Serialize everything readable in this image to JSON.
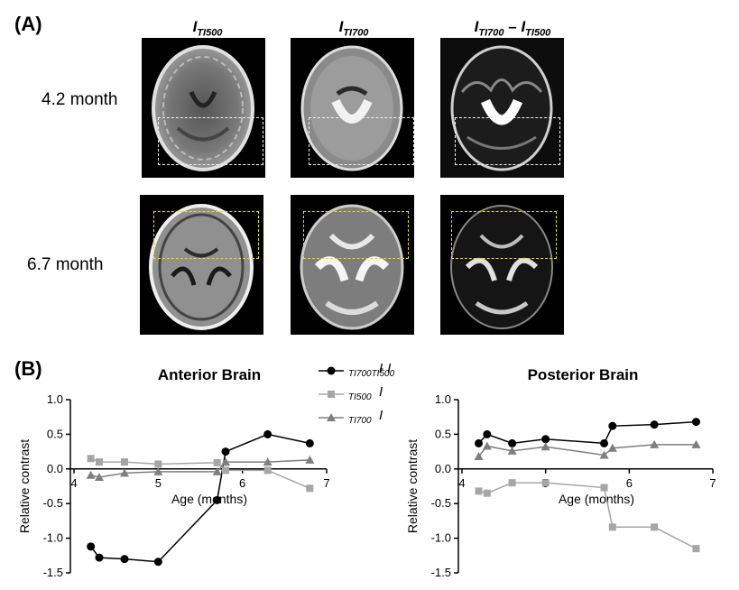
{
  "panels": {
    "a": "(A)",
    "b": "(B)"
  },
  "columns": [
    {
      "main": "I",
      "sub": "TI500",
      "rest": "",
      "sub2": ""
    },
    {
      "main": "I",
      "sub": "TI700",
      "rest": "",
      "sub2": ""
    },
    {
      "main": "I",
      "sub": "TI700",
      "rest": " – I",
      "sub2": "TI500"
    }
  ],
  "rows": [
    "4.2 month",
    "6.7 month"
  ],
  "legend": [
    {
      "main": "I",
      "sub": "TI700",
      "rest": " - I",
      "sub2": "TI500",
      "color": "#000000",
      "marker": "circle"
    },
    {
      "main": "I",
      "sub": "TI500",
      "rest": "",
      "sub2": "",
      "color": "#a6a6a6",
      "marker": "square"
    },
    {
      "main": "I",
      "sub": "TI700",
      "rest": "",
      "sub2": "",
      "color": "#7f7f7f",
      "marker": "triangle"
    }
  ],
  "chart_data": [
    {
      "type": "line",
      "title": "Anterior Brain",
      "xlabel": "Age (months)",
      "ylabel": "Relative contrast",
      "xlim": [
        4,
        7
      ],
      "ylim": [
        -1.5,
        1.0
      ],
      "xticks": [
        4,
        5,
        6,
        7
      ],
      "yticks": [
        1.0,
        0.5,
        0.0,
        -0.5,
        -1.0,
        -1.5
      ],
      "ytick_labels": [
        "1.0",
        "0.5",
        "0.0",
        "-0.5",
        "-1.0",
        "-1.5"
      ],
      "series": [
        {
          "name": "ITI700 - ITI500",
          "color": "#000000",
          "marker": "circle",
          "x": [
            4.2,
            4.3,
            4.6,
            5.0,
            5.7,
            5.8,
            6.3,
            6.8
          ],
          "y": [
            -1.12,
            -1.28,
            -1.3,
            -1.34,
            -0.45,
            0.25,
            0.5,
            0.37
          ]
        },
        {
          "name": "ITI500",
          "color": "#a6a6a6",
          "marker": "square",
          "x": [
            4.2,
            4.3,
            4.6,
            5.0,
            5.7,
            5.8,
            6.3,
            6.8
          ],
          "y": [
            0.15,
            0.1,
            0.1,
            0.07,
            0.09,
            -0.02,
            -0.02,
            -0.28
          ]
        },
        {
          "name": "ITI700",
          "color": "#7f7f7f",
          "marker": "triangle",
          "x": [
            4.2,
            4.3,
            4.6,
            5.0,
            5.7,
            5.8,
            6.3,
            6.8
          ],
          "y": [
            -0.09,
            -0.12,
            -0.06,
            -0.04,
            -0.04,
            0.1,
            0.1,
            0.13
          ]
        }
      ]
    },
    {
      "type": "line",
      "title": "Posterior Brain",
      "xlabel": "Age (months)",
      "ylabel": "Relative contrast",
      "xlim": [
        4,
        7
      ],
      "ylim": [
        -1.5,
        1.0
      ],
      "xticks": [
        4,
        5,
        6,
        7
      ],
      "yticks": [
        1.0,
        0.5,
        0.0,
        -0.5,
        -1.0,
        -1.5
      ],
      "ytick_labels": [
        "1.0",
        "0.5",
        "0.0",
        "-0.5",
        "-1.0",
        "-1.5"
      ],
      "series": [
        {
          "name": "ITI700 - ITI500",
          "color": "#000000",
          "marker": "circle",
          "x": [
            4.2,
            4.3,
            4.6,
            5.0,
            5.7,
            5.8,
            6.3,
            6.8
          ],
          "y": [
            0.37,
            0.5,
            0.37,
            0.43,
            0.37,
            0.62,
            0.64,
            0.68
          ]
        },
        {
          "name": "ITI500",
          "color": "#a6a6a6",
          "marker": "square",
          "x": [
            4.2,
            4.3,
            4.6,
            5.0,
            5.7,
            5.8,
            6.3,
            6.8
          ],
          "y": [
            -0.32,
            -0.35,
            -0.2,
            -0.2,
            -0.27,
            -0.84,
            -0.84,
            -1.15
          ]
        },
        {
          "name": "ITI700",
          "color": "#7f7f7f",
          "marker": "triangle",
          "x": [
            4.2,
            4.3,
            4.6,
            5.0,
            5.7,
            5.8,
            6.3,
            6.8
          ],
          "y": [
            0.18,
            0.33,
            0.26,
            0.32,
            0.2,
            0.3,
            0.35,
            0.35
          ]
        }
      ]
    }
  ]
}
